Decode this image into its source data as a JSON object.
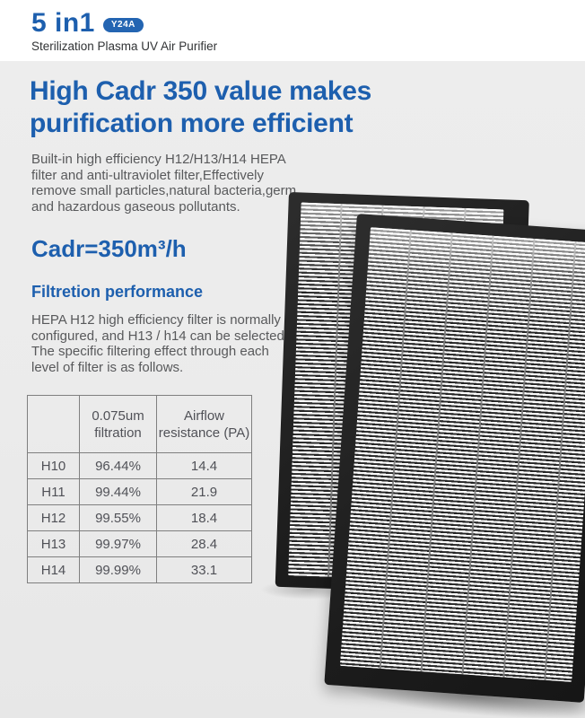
{
  "colors": {
    "accent_blue": "#1d5fae",
    "badge_blue": "#2465b2",
    "section_gray": "#ebebeb",
    "body_text_gray": "#58595b",
    "filter_frame_black": "#1f1f1f"
  },
  "header": {
    "title": "5 in1",
    "model_badge": "Y24A",
    "subtitle": "Sterilization Plasma UV Air Purifier"
  },
  "main": {
    "heading": "High Cadr 350 value makes\npurification more efficient",
    "intro": "Built-in high efficiency H12/H13/H14 HEPA\nfilter and anti-ultraviolet filter,Effectively\nremove small particles,natural bacteria,germ\nand hazardous gaseous pollutants.",
    "cadr_value": "Cadr=350m³/h",
    "section_title": "Filtretion performance",
    "section_body": "HEPA H12 high efficiency filter is normally\nconfigured, and H13 / h14 can be selected.\nThe specific filtering effect through each\nlevel of filter is as follows."
  },
  "table": {
    "headers": [
      "",
      "0.075um\nfiltration",
      "Airflow\nresistance (PA)"
    ],
    "rows": [
      {
        "grade": "H10",
        "filtration": "96.44%",
        "resistance": "14.4"
      },
      {
        "grade": "H11",
        "filtration": "99.44%",
        "resistance": "21.9"
      },
      {
        "grade": "H12",
        "filtration": "99.55%",
        "resistance": "18.4"
      },
      {
        "grade": "H13",
        "filtration": "99.97%",
        "resistance": "28.4"
      },
      {
        "grade": "H14",
        "filtration": "99.99%",
        "resistance": "33.1"
      }
    ]
  },
  "product_image": {
    "alt": "Two black-framed pleated HEPA filter panels"
  }
}
